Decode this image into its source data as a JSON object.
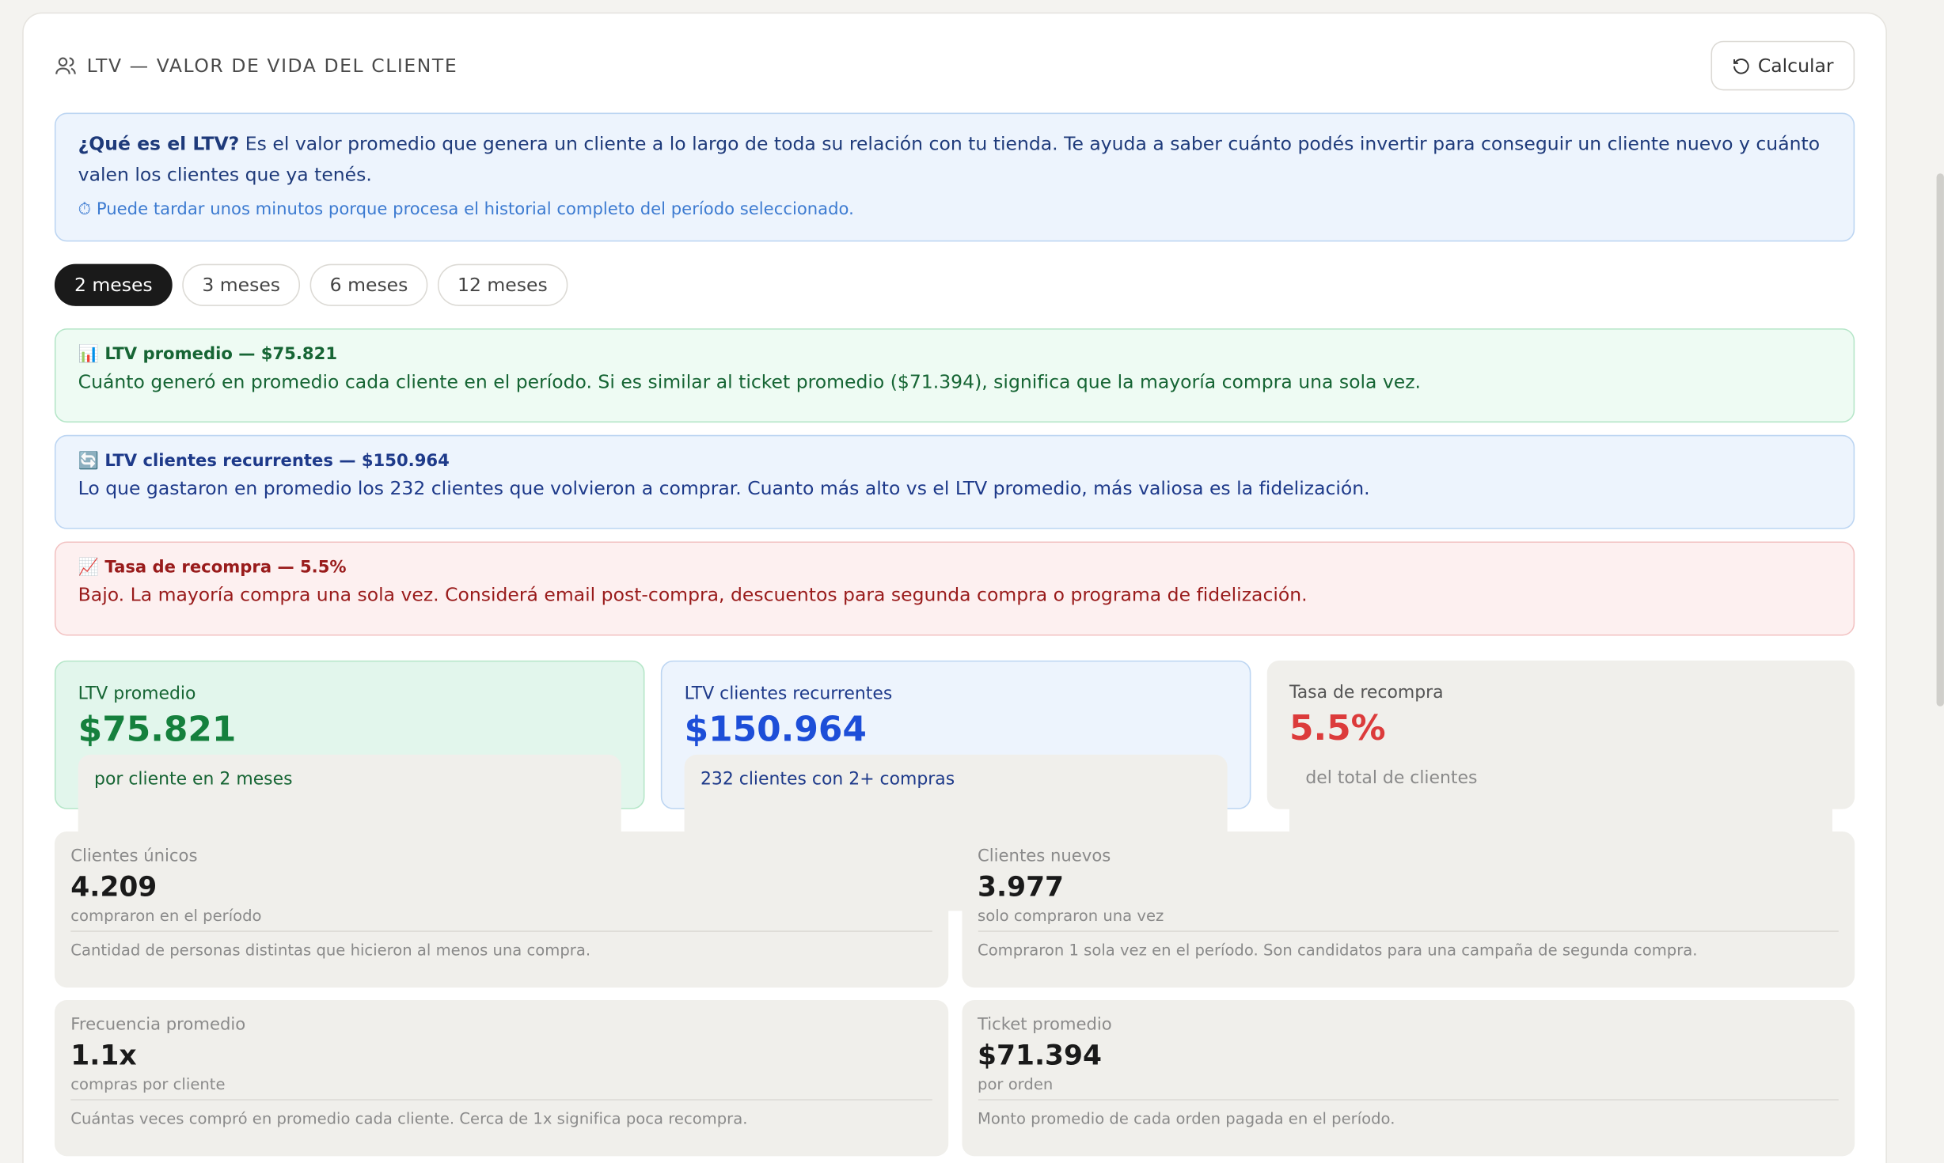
{
  "header": {
    "title": "LTV — VALOR DE VIDA DEL CLIENTE",
    "button": "Calcular"
  },
  "info": {
    "lead": "¿Qué es el LTV?",
    "text": "Es el valor promedio que genera un cliente a lo largo de toda su relación con tu tienda. Te ayuda a saber cuánto podés invertir para conseguir un cliente nuevo y cuánto valen los clientes que ya tenés.",
    "note": "⏱ Puede tardar unos minutos porque procesa el historial completo del período seleccionado."
  },
  "periods": [
    "2 meses",
    "3 meses",
    "6 meses",
    "12 meses"
  ],
  "insights": [
    {
      "title": "📊 LTV promedio — $75.821",
      "text": "Cuánto generó en promedio cada cliente en el período. Si es similar al ticket promedio ($71.394), significa que la mayoría compra una sola vez."
    },
    {
      "title": "🔄 LTV clientes recurrentes — $150.964",
      "text": "Lo que gastaron en promedio los 232 clientes que volvieron a comprar. Cuanto más alto vs el LTV promedio, más valiosa es la fidelización."
    },
    {
      "title": "📈 Tasa de recompra — 5.5%",
      "text": "Bajo. La mayoría compra una sola vez. Considerá email post-compra, descuentos para segunda compra o programa de fidelización."
    }
  ],
  "kpis": [
    {
      "label": "LTV promedio",
      "value": "$75.821",
      "sub": "por cliente en 2 meses"
    },
    {
      "label": "LTV clientes recurrentes",
      "value": "$150.964",
      "sub": "232 clientes con 2+ compras"
    },
    {
      "label": "Tasa de recompra",
      "value": "5.5%",
      "sub": "del total de clientes"
    }
  ],
  "stats": [
    {
      "label": "Clientes únicos",
      "value": "4.209",
      "sub": "compraron en el período",
      "desc": "Cantidad de personas distintas que hicieron al menos una compra."
    },
    {
      "label": "Clientes nuevos",
      "value": "3.977",
      "sub": "solo compraron una vez",
      "desc": "Compraron 1 sola vez en el período. Son candidatos para una campaña de segunda compra."
    },
    {
      "label": "Frecuencia promedio",
      "value": "1.1x",
      "sub": "compras por cliente",
      "desc": "Cuántas veces compró en promedio cada cliente. Cerca de 1x significa poca recompra."
    },
    {
      "label": "Ticket promedio",
      "value": "$71.394",
      "sub": "por orden",
      "desc": "Monto promedio de cada orden pagada en el período."
    }
  ]
}
